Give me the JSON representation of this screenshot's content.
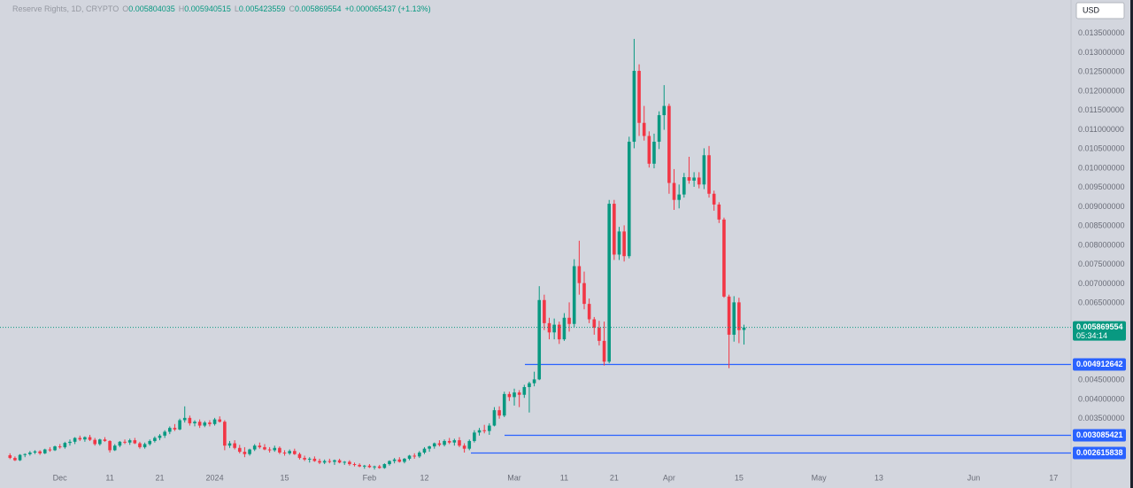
{
  "chart_data": {
    "type": "candlestick",
    "symbol": "Reserve Rights, 1D, CRYPTO",
    "ohlc_labels": [
      "O",
      "H",
      "L",
      "C"
    ],
    "change": "+0.000065437 (+1.13%)",
    "currency": "USD",
    "countdown": "05:34:14",
    "up_color": "#089981",
    "down_color": "#f23645",
    "ylim": [
      0.0017,
      0.01437
    ],
    "xlim": [
      -2,
      212.5
    ],
    "grid": false,
    "yticks": [
      {
        "value": 0.0035,
        "label": "0.003500000"
      },
      {
        "value": 0.004,
        "label": "0.004000000"
      },
      {
        "value": 0.0045,
        "label": "0.004500000"
      },
      {
        "value": 0.0065,
        "label": "0.006500000"
      },
      {
        "value": 0.007,
        "label": "0.007000000"
      },
      {
        "value": 0.0075,
        "label": "0.007500000"
      },
      {
        "value": 0.008,
        "label": "0.008000000"
      },
      {
        "value": 0.0085,
        "label": "0.008500000"
      },
      {
        "value": 0.009,
        "label": "0.009000000"
      },
      {
        "value": 0.0095,
        "label": "0.009500000"
      },
      {
        "value": 0.01,
        "label": "0.010000000"
      },
      {
        "value": 0.0105,
        "label": "0.010500000"
      },
      {
        "value": 0.011,
        "label": "0.011000000"
      },
      {
        "value": 0.0115,
        "label": "0.011500000"
      },
      {
        "value": 0.012,
        "label": "0.012000000"
      },
      {
        "value": 0.0125,
        "label": "0.012500000"
      },
      {
        "value": 0.013,
        "label": "0.013000000"
      },
      {
        "value": 0.0135,
        "label": "0.013500000"
      }
    ],
    "xticks": [
      {
        "value": 10,
        "label": "Dec"
      },
      {
        "value": 20,
        "label": "11"
      },
      {
        "value": 30,
        "label": "21"
      },
      {
        "value": 41,
        "label": "2024"
      },
      {
        "value": 55,
        "label": "15"
      },
      {
        "value": 72,
        "label": "Feb"
      },
      {
        "value": 83,
        "label": "12"
      },
      {
        "value": 101,
        "label": "Mar"
      },
      {
        "value": 111,
        "label": "11"
      },
      {
        "value": 121,
        "label": "21"
      },
      {
        "value": 132,
        "label": "Apr"
      },
      {
        "value": 146,
        "label": "15"
      },
      {
        "value": 162,
        "label": "May"
      },
      {
        "value": 174,
        "label": "13"
      },
      {
        "value": 193,
        "label": "Jun"
      },
      {
        "value": 209,
        "label": "17"
      }
    ],
    "levels": [
      {
        "value": 0.004912642,
        "color": "#2962ff"
      },
      {
        "value": 0.003085421,
        "color": "#2962ff"
      },
      {
        "value": 0.002615838,
        "color": "#2962ff"
      }
    ],
    "candles": [
      [
        0.00255,
        0.0026,
        0.00245,
        0.00248
      ],
      [
        0.00248,
        0.00252,
        0.0024,
        0.00242
      ],
      [
        0.00242,
        0.00258,
        0.0024,
        0.00256
      ],
      [
        0.00256,
        0.0026,
        0.0025,
        0.00258
      ],
      [
        0.00258,
        0.00266,
        0.00254,
        0.00262
      ],
      [
        0.00262,
        0.00268,
        0.00258,
        0.00265
      ],
      [
        0.00265,
        0.00268,
        0.00256,
        0.0026
      ],
      [
        0.0026,
        0.00272,
        0.00258,
        0.0027
      ],
      [
        0.0027,
        0.00276,
        0.00264,
        0.00268
      ],
      [
        0.00268,
        0.0028,
        0.00266,
        0.00278
      ],
      [
        0.00278,
        0.00284,
        0.00272,
        0.00276
      ],
      [
        0.00276,
        0.0029,
        0.00272,
        0.00287
      ],
      [
        0.00287,
        0.00296,
        0.0028,
        0.0029
      ],
      [
        0.0029,
        0.00302,
        0.00284,
        0.003
      ],
      [
        0.003,
        0.00306,
        0.00292,
        0.00296
      ],
      [
        0.00296,
        0.00304,
        0.0029,
        0.00302
      ],
      [
        0.00302,
        0.00308,
        0.00292,
        0.00295
      ],
      [
        0.00295,
        0.003,
        0.0028,
        0.00284
      ],
      [
        0.00284,
        0.00298,
        0.0028,
        0.00296
      ],
      [
        0.00296,
        0.00302,
        0.0029,
        0.00292
      ],
      [
        0.00292,
        0.00294,
        0.00262,
        0.00268
      ],
      [
        0.00268,
        0.00284,
        0.00266,
        0.0028
      ],
      [
        0.0028,
        0.00292,
        0.00276,
        0.0029
      ],
      [
        0.0029,
        0.00296,
        0.00284,
        0.00288
      ],
      [
        0.00288,
        0.00298,
        0.00282,
        0.00294
      ],
      [
        0.00294,
        0.003,
        0.00284,
        0.00286
      ],
      [
        0.00286,
        0.0029,
        0.00272,
        0.00276
      ],
      [
        0.00276,
        0.00288,
        0.00272,
        0.00284
      ],
      [
        0.00284,
        0.00296,
        0.0028,
        0.00292
      ],
      [
        0.00292,
        0.00304,
        0.00288,
        0.003
      ],
      [
        0.003,
        0.0031,
        0.00294,
        0.00306
      ],
      [
        0.00306,
        0.0032,
        0.003,
        0.00316
      ],
      [
        0.00316,
        0.0033,
        0.0031,
        0.00326
      ],
      [
        0.00326,
        0.00336,
        0.00318,
        0.00322
      ],
      [
        0.00322,
        0.0035,
        0.0032,
        0.00346
      ],
      [
        0.00346,
        0.00382,
        0.0034,
        0.00352
      ],
      [
        0.00352,
        0.00358,
        0.00332,
        0.00338
      ],
      [
        0.00338,
        0.00346,
        0.0033,
        0.00342
      ],
      [
        0.00342,
        0.00348,
        0.00326,
        0.00332
      ],
      [
        0.00332,
        0.00344,
        0.00328,
        0.0034
      ],
      [
        0.0034,
        0.00346,
        0.0033,
        0.00336
      ],
      [
        0.00336,
        0.00352,
        0.00332,
        0.00348
      ],
      [
        0.00348,
        0.00356,
        0.0034,
        0.00342
      ],
      [
        0.00342,
        0.00346,
        0.00268,
        0.0028
      ],
      [
        0.0028,
        0.00292,
        0.00274,
        0.00286
      ],
      [
        0.00286,
        0.00294,
        0.0027,
        0.00274
      ],
      [
        0.00274,
        0.00282,
        0.0026,
        0.00264
      ],
      [
        0.00264,
        0.00276,
        0.0025,
        0.00258
      ],
      [
        0.00258,
        0.00272,
        0.00254,
        0.0027
      ],
      [
        0.0027,
        0.00284,
        0.00266,
        0.0028
      ],
      [
        0.0028,
        0.00288,
        0.00272,
        0.00276
      ],
      [
        0.00276,
        0.00284,
        0.00268,
        0.0027
      ],
      [
        0.0027,
        0.00276,
        0.00262,
        0.00268
      ],
      [
        0.00268,
        0.0028,
        0.00264,
        0.00274
      ],
      [
        0.00274,
        0.00278,
        0.00258,
        0.00262
      ],
      [
        0.00262,
        0.00268,
        0.00254,
        0.0026
      ],
      [
        0.0026,
        0.0027,
        0.00256,
        0.00266
      ],
      [
        0.00266,
        0.00272,
        0.00256,
        0.00258
      ],
      [
        0.00258,
        0.00262,
        0.00244,
        0.00248
      ],
      [
        0.00248,
        0.00254,
        0.0024,
        0.00244
      ],
      [
        0.00244,
        0.0025,
        0.00236,
        0.00246
      ],
      [
        0.00246,
        0.00252,
        0.00238,
        0.0024
      ],
      [
        0.0024,
        0.00246,
        0.00232,
        0.00236
      ],
      [
        0.00236,
        0.00244,
        0.00232,
        0.0024
      ],
      [
        0.0024,
        0.00246,
        0.00234,
        0.00238
      ],
      [
        0.00238,
        0.00244,
        0.0023,
        0.00242
      ],
      [
        0.00242,
        0.00246,
        0.00234,
        0.00236
      ],
      [
        0.00236,
        0.0024,
        0.0023,
        0.00238
      ],
      [
        0.00238,
        0.00242,
        0.00228,
        0.00232
      ],
      [
        0.00232,
        0.00236,
        0.00226,
        0.0023
      ],
      [
        0.0023,
        0.00234,
        0.00224,
        0.00226
      ],
      [
        0.00226,
        0.0023,
        0.0022,
        0.00228
      ],
      [
        0.00228,
        0.00232,
        0.00222,
        0.00224
      ],
      [
        0.00224,
        0.00228,
        0.00218,
        0.00226
      ],
      [
        0.00226,
        0.0023,
        0.0022,
        0.00222
      ],
      [
        0.00222,
        0.00234,
        0.0022,
        0.00232
      ],
      [
        0.00232,
        0.00242,
        0.00228,
        0.0024
      ],
      [
        0.0024,
        0.00248,
        0.00234,
        0.00244
      ],
      [
        0.00244,
        0.0025,
        0.00236,
        0.00238
      ],
      [
        0.00238,
        0.00248,
        0.00234,
        0.00246
      ],
      [
        0.00246,
        0.00256,
        0.00242,
        0.00254
      ],
      [
        0.00254,
        0.0026,
        0.00246,
        0.00252
      ],
      [
        0.00252,
        0.00266,
        0.00248,
        0.00262
      ],
      [
        0.00262,
        0.00276,
        0.00258,
        0.00272
      ],
      [
        0.00272,
        0.0028,
        0.00264,
        0.00278
      ],
      [
        0.00278,
        0.00288,
        0.00272,
        0.00286
      ],
      [
        0.00286,
        0.00294,
        0.00278,
        0.00282
      ],
      [
        0.00282,
        0.00296,
        0.00278,
        0.00292
      ],
      [
        0.00292,
        0.003,
        0.00284,
        0.00288
      ],
      [
        0.00288,
        0.00298,
        0.0028,
        0.00294
      ],
      [
        0.00294,
        0.00302,
        0.00276,
        0.0028
      ],
      [
        0.0028,
        0.00286,
        0.00262,
        0.00272
      ],
      [
        0.00272,
        0.00296,
        0.00268,
        0.00292
      ],
      [
        0.00292,
        0.0032,
        0.00288,
        0.00314
      ],
      [
        0.00314,
        0.00326,
        0.00306,
        0.0032
      ],
      [
        0.0032,
        0.00334,
        0.00312,
        0.00318
      ],
      [
        0.00318,
        0.00338,
        0.00308,
        0.00332
      ],
      [
        0.00332,
        0.0038,
        0.0033,
        0.00372
      ],
      [
        0.00372,
        0.00382,
        0.0035,
        0.00358
      ],
      [
        0.00358,
        0.0042,
        0.00354,
        0.00414
      ],
      [
        0.00414,
        0.0042,
        0.00396,
        0.00406
      ],
      [
        0.00406,
        0.00428,
        0.00384,
        0.00418
      ],
      [
        0.00418,
        0.00424,
        0.0038,
        0.00412
      ],
      [
        0.00412,
        0.00438,
        0.00404,
        0.00432
      ],
      [
        0.00432,
        0.00446,
        0.00366,
        0.00442
      ],
      [
        0.00442,
        0.00472,
        0.00434,
        0.00452
      ],
      [
        0.00452,
        0.00694,
        0.0045,
        0.00658
      ],
      [
        0.00658,
        0.00672,
        0.0058,
        0.00598
      ],
      [
        0.00598,
        0.00612,
        0.00556,
        0.00574
      ],
      [
        0.00574,
        0.0061,
        0.00556,
        0.00594
      ],
      [
        0.00594,
        0.00602,
        0.00544,
        0.00556
      ],
      [
        0.00556,
        0.00624,
        0.00552,
        0.00612
      ],
      [
        0.00612,
        0.00652,
        0.00576,
        0.00596
      ],
      [
        0.00596,
        0.00764,
        0.00588,
        0.00746
      ],
      [
        0.00746,
        0.00812,
        0.00672,
        0.00702
      ],
      [
        0.00702,
        0.00732,
        0.00634,
        0.00648
      ],
      [
        0.00648,
        0.00662,
        0.00598,
        0.00608
      ],
      [
        0.00608,
        0.00614,
        0.00568,
        0.00586
      ],
      [
        0.00586,
        0.00604,
        0.0054,
        0.00552
      ],
      [
        0.00552,
        0.00602,
        0.00488,
        0.00498
      ],
      [
        0.00498,
        0.00918,
        0.00494,
        0.00908
      ],
      [
        0.00908,
        0.00918,
        0.00762,
        0.00776
      ],
      [
        0.00776,
        0.00848,
        0.00762,
        0.00836
      ],
      [
        0.00836,
        0.00852,
        0.00758,
        0.00772
      ],
      [
        0.00772,
        0.01082,
        0.00766,
        0.01069
      ],
      [
        0.01069,
        0.01336,
        0.01052,
        0.01253
      ],
      [
        0.01253,
        0.0127,
        0.01084,
        0.01118
      ],
      [
        0.01118,
        0.01162,
        0.01072,
        0.01084
      ],
      [
        0.01084,
        0.01096,
        0.01002,
        0.01012
      ],
      [
        0.01012,
        0.0109,
        0.01,
        0.01069
      ],
      [
        0.01069,
        0.01148,
        0.0105,
        0.01138
      ],
      [
        0.01138,
        0.01216,
        0.011,
        0.01162
      ],
      [
        0.01162,
        0.01168,
        0.00934,
        0.00962
      ],
      [
        0.00962,
        0.00998,
        0.00892,
        0.00918
      ],
      [
        0.00918,
        0.00958,
        0.00896,
        0.00932
      ],
      [
        0.00932,
        0.00988,
        0.00924,
        0.00977
      ],
      [
        0.00977,
        0.0103,
        0.0096,
        0.00968
      ],
      [
        0.00968,
        0.0099,
        0.00952,
        0.00976
      ],
      [
        0.00976,
        0.0099,
        0.00948,
        0.00958
      ],
      [
        0.00958,
        0.01052,
        0.00946,
        0.01034
      ],
      [
        0.01034,
        0.01058,
        0.00924,
        0.00934
      ],
      [
        0.00934,
        0.00942,
        0.0089,
        0.00906
      ],
      [
        0.00906,
        0.00912,
        0.00858,
        0.00867
      ],
      [
        0.00867,
        0.00872,
        0.00664,
        0.00667
      ],
      [
        0.00667,
        0.00672,
        0.00481,
        0.00568
      ],
      [
        0.00568,
        0.00668,
        0.0055,
        0.00652
      ],
      [
        0.00652,
        0.00664,
        0.00546,
        0.0058
      ],
      [
        0.005804035,
        0.005940515,
        0.005423559,
        0.005869554
      ]
    ]
  }
}
